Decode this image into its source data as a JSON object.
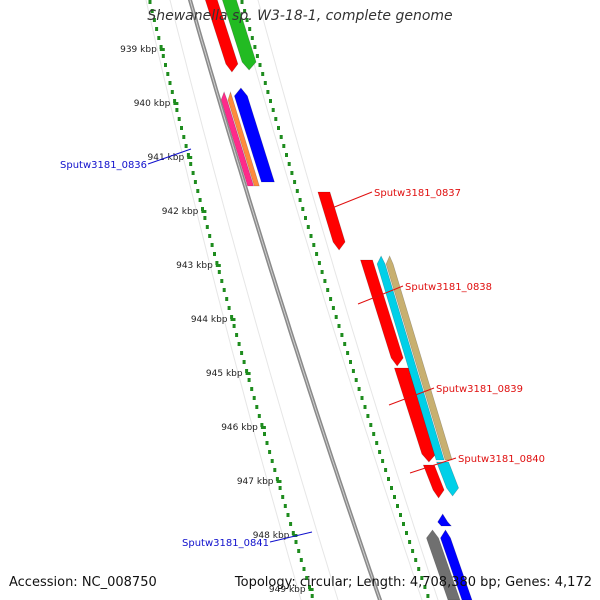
{
  "title": "Shewanella sp. W3-18-1, complete genome",
  "footer": {
    "accession": "Accession: NC_008750",
    "summary": "Topology: circular; Length: 4,708,380 bp; Genes: 4,172"
  },
  "ticks": [
    "939 kbp",
    "940 kbp",
    "941 kbp",
    "942 kbp",
    "943 kbp",
    "944 kbp",
    "945 kbp",
    "946 kbp",
    "947 kbp",
    "948 kbp",
    "949 kbp"
  ],
  "gene_labels": [
    {
      "text": "Sputw3181_0836",
      "color": "#1010cc",
      "side": "left"
    },
    {
      "text": "Sputw3181_0837",
      "color": "#e01010",
      "side": "right"
    },
    {
      "text": "Sputw3181_0838",
      "color": "#e01010",
      "side": "right"
    },
    {
      "text": "Sputw3181_0839",
      "color": "#e01010",
      "side": "right"
    },
    {
      "text": "Sputw3181_0840",
      "color": "#e01010",
      "side": "right"
    },
    {
      "text": "Sputw3181_0841",
      "color": "#1010cc",
      "side": "left"
    }
  ],
  "colors": {
    "backbone": "#8a8a8a",
    "tick_dots": "#1e8c1e",
    "forward_gene": "#ff0000",
    "reverse_gene": "#0000ff",
    "cyan_feature": "#00d0e8",
    "tan_feature": "#c8b070",
    "green_feature": "#22bb22",
    "orange_feature": "#ff8a3c",
    "pink_feature": "#ff2a8a",
    "gray_feature": "#707070"
  }
}
